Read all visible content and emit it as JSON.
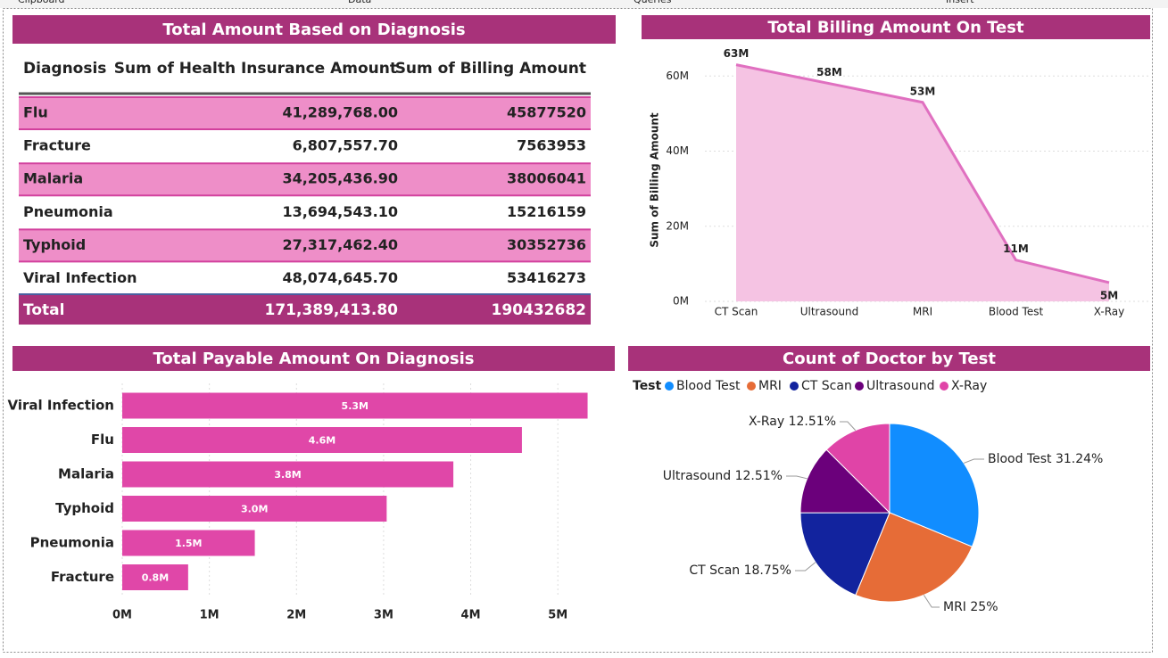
{
  "ribbon": [
    "Clipboard",
    "Data",
    "Queries",
    "Insert"
  ],
  "table": {
    "title": "Total Amount Based on Diagnosis",
    "columns": [
      "Diagnosis",
      "Sum of Health Insurance Amount",
      "Sum of Billing Amount"
    ],
    "rows": [
      [
        "Flu",
        "41,289,768.00",
        "45877520"
      ],
      [
        "Fracture",
        "6,807,557.70",
        "7563953"
      ],
      [
        "Malaria",
        "34,205,436.90",
        "38006041"
      ],
      [
        "Pneumonia",
        "13,694,543.10",
        "15216159"
      ],
      [
        "Typhoid",
        "27,317,462.40",
        "30352736"
      ],
      [
        "Viral Infection",
        "48,074,645.70",
        "53416273"
      ]
    ],
    "total": [
      "Total",
      "171,389,413.80",
      "190432682"
    ]
  },
  "chart_data": [
    {
      "type": "area",
      "title": "Total Billing Amount On Test",
      "y_label": "Sum of Billing Amount",
      "categories": [
        "CT Scan",
        "Ultrasound",
        "MRI",
        "Blood Test",
        "X-Ray"
      ],
      "values": [
        63000000,
        58000000,
        53000000,
        11000000,
        5000000
      ],
      "value_labels": [
        "63M",
        "58M",
        "53M",
        "11M",
        "5M"
      ],
      "color": "#e070c0",
      "fill": "#f5c3e3",
      "ylim": [
        0,
        66000000
      ],
      "yticks": [
        {
          "value": 0,
          "label": "0M"
        },
        {
          "value": 20000000,
          "label": "20M"
        },
        {
          "value": 40000000,
          "label": "40M"
        },
        {
          "value": 60000000,
          "label": "60M"
        }
      ],
      "grid": true
    },
    {
      "type": "hbar",
      "title": "Total Payable Amount On Diagnosis",
      "categories": [
        "Viral Infection",
        "Flu",
        "Malaria",
        "Typhoid",
        "Pneumonia",
        "Fracture"
      ],
      "values": [
        5341627.3,
        4587752,
        3800604.1,
        3035273.6,
        1521615.9,
        756395.3
      ],
      "value_labels": [
        "5.3M",
        "4.6M",
        "3.8M",
        "3.0M",
        "1.5M",
        "0.8M"
      ],
      "color": "#e047a8",
      "xlim": [
        0,
        5500000
      ],
      "xticks": [
        {
          "value": 0,
          "label": "0M"
        },
        {
          "value": 1000000,
          "label": "1M"
        },
        {
          "value": 2000000,
          "label": "2M"
        },
        {
          "value": 3000000,
          "label": "3M"
        },
        {
          "value": 4000000,
          "label": "4M"
        },
        {
          "value": 5000000,
          "label": "5M"
        }
      ],
      "grid": true
    },
    {
      "type": "pie",
      "title": "Count of Doctor by Test",
      "legend_title": "Test",
      "categories": [
        "Blood Test",
        "MRI",
        "CT Scan",
        "Ultrasound",
        "X-Ray"
      ],
      "values": [
        31.24,
        25,
        18.75,
        12.51,
        12.51
      ],
      "value_labels": [
        "Blood Test 31.24%",
        "MRI 25%",
        "CT Scan 18.75%",
        "Ultrasound 12.51%",
        "X-Ray 12.51%"
      ],
      "colors": [
        "#118dff",
        "#e66c37",
        "#12239e",
        "#6b007b",
        "#e044a7"
      ]
    }
  ]
}
